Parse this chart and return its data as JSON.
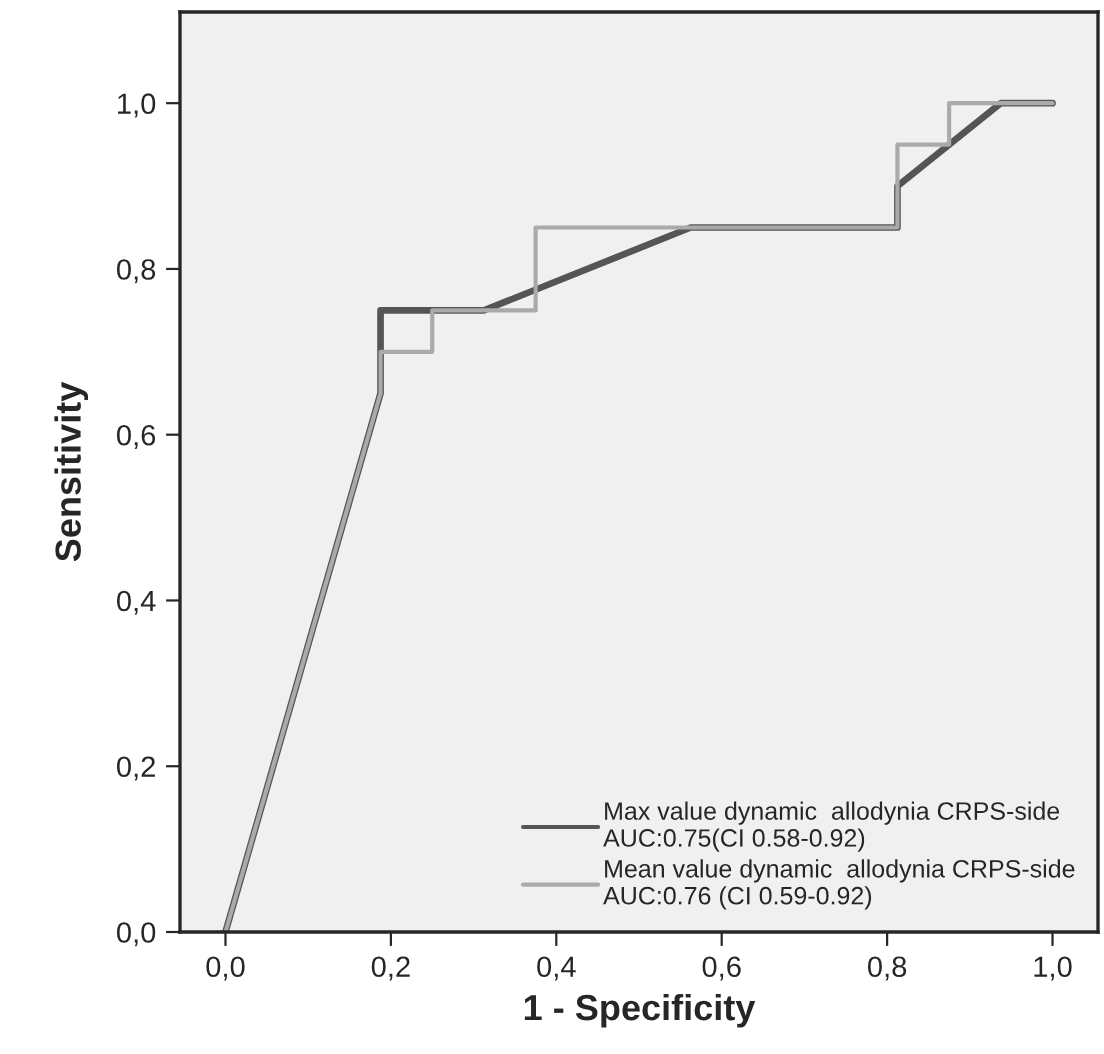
{
  "chart_data": {
    "type": "line",
    "xlabel": "1 - Specificity",
    "ylabel": "Sensitivity",
    "xlim": [
      -0.055,
      1.055
    ],
    "ylim": [
      0,
      1.11
    ],
    "xticks": [
      {
        "value": 0,
        "label": "0,0"
      },
      {
        "value": 0.2,
        "label": "0,2"
      },
      {
        "value": 0.4,
        "label": "0,4"
      },
      {
        "value": 0.6,
        "label": "0,6"
      },
      {
        "value": 0.8,
        "label": "0,8"
      },
      {
        "value": 1,
        "label": "1,0"
      }
    ],
    "yticks": [
      {
        "value": 0,
        "label": "0,0"
      },
      {
        "value": 0.2,
        "label": "0,2"
      },
      {
        "value": 0.4,
        "label": "0,4"
      },
      {
        "value": 0.6,
        "label": "0,6"
      },
      {
        "value": 0.8,
        "label": "0,8"
      },
      {
        "value": 1,
        "label": "1,0"
      }
    ],
    "grid": false,
    "legend": "bottom right",
    "line_style": "solid",
    "series": [
      {
        "name": "Max value dynamic  allodynia CRPS-side\nAUC:0.75(CI 0.58-0.92)",
        "color": "#555555",
        "x": [
          0,
          0.1875,
          0.1875,
          0.3125,
          0.5625,
          0.8125,
          0.8125,
          0.9375,
          1
        ],
        "values": [
          0,
          0.65,
          0.75,
          0.75,
          0.85,
          0.85,
          0.9,
          1,
          1
        ]
      },
      {
        "name": "Mean value dynamic  allodynia CRPS-side\nAUC:0.76 (CI 0.59-0.92)",
        "color": "#aaaaaa",
        "x": [
          0,
          0.1875,
          0.1875,
          0.25,
          0.25,
          0.375,
          0.375,
          0.8125,
          0.8125,
          0.875,
          0.875,
          1
        ],
        "values": [
          0,
          0.65,
          0.7,
          0.7,
          0.75,
          0.75,
          0.85,
          0.85,
          0.95,
          0.95,
          1,
          1
        ]
      }
    ]
  }
}
